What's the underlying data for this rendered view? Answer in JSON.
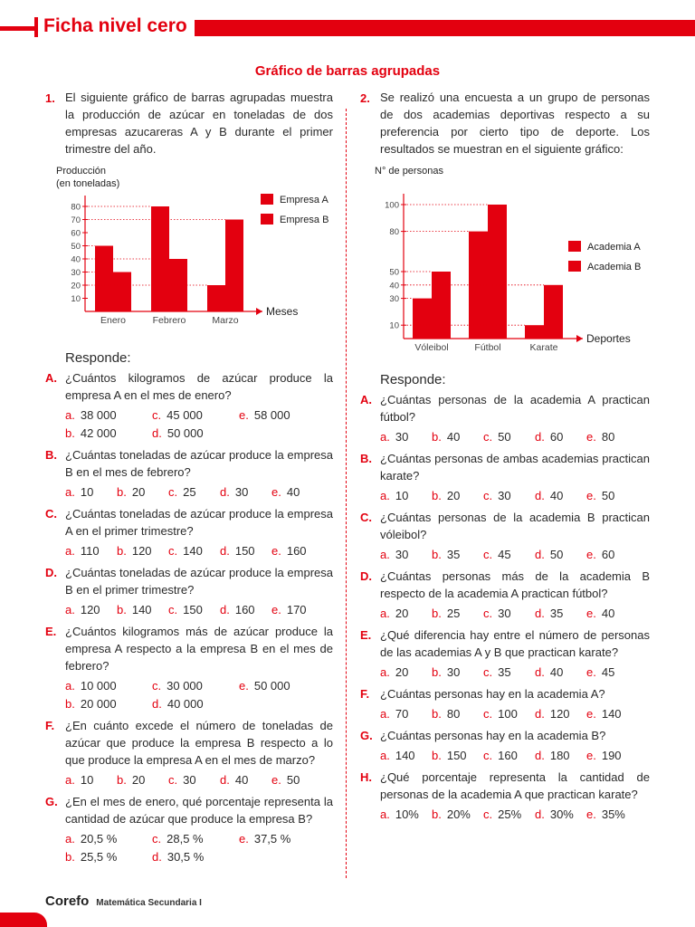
{
  "header": {
    "title": "Ficha nivel cero"
  },
  "section_title": "Gráfico de barras agrupadas",
  "responde_label": "Responde",
  "q1": {
    "number": "1.",
    "text": "El siguiente gráfico de barras agrupadas muestra la producción de azúcar en toneladas de dos empresas azucareras A y B durante el primer trimestre del año.",
    "items": [
      {
        "letter": "A.",
        "text": "¿Cuántos kilogramos de azúcar produce la empresa A en el mes de enero?",
        "layout": "three",
        "options": [
          {
            "l": "a.",
            "v": "38 000"
          },
          {
            "l": "c.",
            "v": "45 000"
          },
          {
            "l": "e.",
            "v": "58 000"
          },
          {
            "l": "b.",
            "v": "42 000"
          },
          {
            "l": "d.",
            "v": "50 000"
          }
        ]
      },
      {
        "letter": "B.",
        "text": "¿Cuántas toneladas de azúcar produce la empresa B en el mes de febrero?",
        "layout": "five",
        "options": [
          {
            "l": "a.",
            "v": "10"
          },
          {
            "l": "b.",
            "v": "20"
          },
          {
            "l": "c.",
            "v": "25"
          },
          {
            "l": "d.",
            "v": "30"
          },
          {
            "l": "e.",
            "v": "40"
          }
        ]
      },
      {
        "letter": "C.",
        "text": "¿Cuántas toneladas de azúcar produce la empresa A en el primer trimestre?",
        "layout": "five",
        "options": [
          {
            "l": "a.",
            "v": "110"
          },
          {
            "l": "b.",
            "v": "120"
          },
          {
            "l": "c.",
            "v": "140"
          },
          {
            "l": "d.",
            "v": "150"
          },
          {
            "l": "e.",
            "v": "160"
          }
        ]
      },
      {
        "letter": "D.",
        "text": "¿Cuántas toneladas de azúcar produce la empresa B en el primer trimestre?",
        "layout": "five",
        "options": [
          {
            "l": "a.",
            "v": "120"
          },
          {
            "l": "b.",
            "v": "140"
          },
          {
            "l": "c.",
            "v": "150"
          },
          {
            "l": "d.",
            "v": "160"
          },
          {
            "l": "e.",
            "v": "170"
          }
        ]
      },
      {
        "letter": "E.",
        "text": "¿Cuántos kilogramos más de azúcar produce la empresa A respecto a la empresa B en el mes de febrero?",
        "layout": "three",
        "options": [
          {
            "l": "a.",
            "v": "10 000"
          },
          {
            "l": "c.",
            "v": "30 000"
          },
          {
            "l": "e.",
            "v": "50 000"
          },
          {
            "l": "b.",
            "v": "20 000"
          },
          {
            "l": "d.",
            "v": "40 000"
          }
        ]
      },
      {
        "letter": "F.",
        "text": "¿En cuánto excede el número de toneladas de azúcar que produce la empresa B respecto a lo que produce la empresa A en el mes de marzo?",
        "layout": "five",
        "options": [
          {
            "l": "a.",
            "v": "10"
          },
          {
            "l": "b.",
            "v": "20"
          },
          {
            "l": "c.",
            "v": "30"
          },
          {
            "l": "d.",
            "v": "40"
          },
          {
            "l": "e.",
            "v": "50"
          }
        ]
      },
      {
        "letter": "G.",
        "text": "¿En el mes de enero, qué porcentaje representa la cantidad de azúcar que produce la empresa B?",
        "layout": "three",
        "options": [
          {
            "l": "a.",
            "v": "20,5 %"
          },
          {
            "l": "c.",
            "v": "28,5 %"
          },
          {
            "l": "e.",
            "v": "37,5 %"
          },
          {
            "l": "b.",
            "v": "25,5 %"
          },
          {
            "l": "d.",
            "v": "30,5 %"
          }
        ]
      }
    ]
  },
  "q2": {
    "number": "2.",
    "text": "Se realizó una encuesta a un grupo de personas de dos academias deportivas respecto a su preferencia por cierto tipo de deporte. Los resultados se muestran en el siguiente gráfico:",
    "items": [
      {
        "letter": "A.",
        "text": "¿Cuántas personas de la academia A practican fútbol?",
        "layout": "five",
        "options": [
          {
            "l": "a.",
            "v": "30"
          },
          {
            "l": "b.",
            "v": "40"
          },
          {
            "l": "c.",
            "v": "50"
          },
          {
            "l": "d.",
            "v": "60"
          },
          {
            "l": "e.",
            "v": "80"
          }
        ]
      },
      {
        "letter": "B.",
        "text": "¿Cuántas personas de ambas academias practican karate?",
        "layout": "five",
        "options": [
          {
            "l": "a.",
            "v": "10"
          },
          {
            "l": "b.",
            "v": "20"
          },
          {
            "l": "c.",
            "v": "30"
          },
          {
            "l": "d.",
            "v": "40"
          },
          {
            "l": "e.",
            "v": "50"
          }
        ]
      },
      {
        "letter": "C.",
        "text": "¿Cuántas personas de la academia B practican vóleibol?",
        "layout": "five",
        "options": [
          {
            "l": "a.",
            "v": "30"
          },
          {
            "l": "b.",
            "v": "35"
          },
          {
            "l": "c.",
            "v": "45"
          },
          {
            "l": "d.",
            "v": "50"
          },
          {
            "l": "e.",
            "v": "60"
          }
        ]
      },
      {
        "letter": "D.",
        "text": "¿Cuántas personas más de la academia B respecto de la academia A practican fútbol?",
        "layout": "five",
        "options": [
          {
            "l": "a.",
            "v": "20"
          },
          {
            "l": "b.",
            "v": "25"
          },
          {
            "l": "c.",
            "v": "30"
          },
          {
            "l": "d.",
            "v": "35"
          },
          {
            "l": "e.",
            "v": "40"
          }
        ]
      },
      {
        "letter": "E.",
        "text": "¿Qué diferencia hay entre el número de personas de las academias A y B que practican karate?",
        "layout": "five",
        "options": [
          {
            "l": "a.",
            "v": "20"
          },
          {
            "l": "b.",
            "v": "30"
          },
          {
            "l": "c.",
            "v": "35"
          },
          {
            "l": "d.",
            "v": "40"
          },
          {
            "l": "e.",
            "v": "45"
          }
        ]
      },
      {
        "letter": "F.",
        "text": "¿Cuántas personas hay en la academia A?",
        "layout": "five",
        "options": [
          {
            "l": "a.",
            "v": "70"
          },
          {
            "l": "b.",
            "v": "80"
          },
          {
            "l": "c.",
            "v": "100"
          },
          {
            "l": "d.",
            "v": "120"
          },
          {
            "l": "e.",
            "v": "140"
          }
        ]
      },
      {
        "letter": "G.",
        "text": "¿Cuántas personas hay en la academia B?",
        "layout": "five",
        "options": [
          {
            "l": "a.",
            "v": "140"
          },
          {
            "l": "b.",
            "v": "150"
          },
          {
            "l": "c.",
            "v": "160"
          },
          {
            "l": "d.",
            "v": "180"
          },
          {
            "l": "e.",
            "v": "190"
          }
        ]
      },
      {
        "letter": "H.",
        "text": "¿Qué porcentaje representa la cantidad de personas de la academia A que practican karate?",
        "layout": "five",
        "options": [
          {
            "l": "a.",
            "v": "10%"
          },
          {
            "l": "b.",
            "v": "20%"
          },
          {
            "l": "c.",
            "v": "25%"
          },
          {
            "l": "d.",
            "v": "30%"
          },
          {
            "l": "e.",
            "v": "35%"
          }
        ]
      }
    ]
  },
  "chart_data": [
    {
      "type": "bar",
      "ylabel": "Producción (en toneladas)",
      "xlabel": "Meses",
      "categories": [
        "Enero",
        "Febrero",
        "Marzo"
      ],
      "yticks": [
        10,
        20,
        30,
        40,
        50,
        60,
        70,
        80
      ],
      "ylim": [
        0,
        80
      ],
      "series": [
        {
          "name": "Empresa A",
          "values": [
            50,
            80,
            20
          ]
        },
        {
          "name": "Empresa B",
          "values": [
            30,
            40,
            70
          ]
        }
      ],
      "legend_position": "right",
      "bar_color": "#e3000f"
    },
    {
      "type": "bar",
      "ylabel": "N° de personas",
      "xlabel": "Deportes",
      "categories": [
        "Vóleibol",
        "Fútbol",
        "Karate"
      ],
      "yticks": [
        10,
        30,
        40,
        50,
        80,
        100
      ],
      "ylim": [
        0,
        100
      ],
      "series": [
        {
          "name": "Academia A",
          "values": [
            30,
            80,
            10
          ]
        },
        {
          "name": "Academia B",
          "values": [
            50,
            100,
            40
          ]
        }
      ],
      "legend_position": "right",
      "bar_color": "#e3000f"
    }
  ],
  "footer": {
    "brand": "Corefo",
    "subtitle": "Matemática Secundaria I"
  }
}
